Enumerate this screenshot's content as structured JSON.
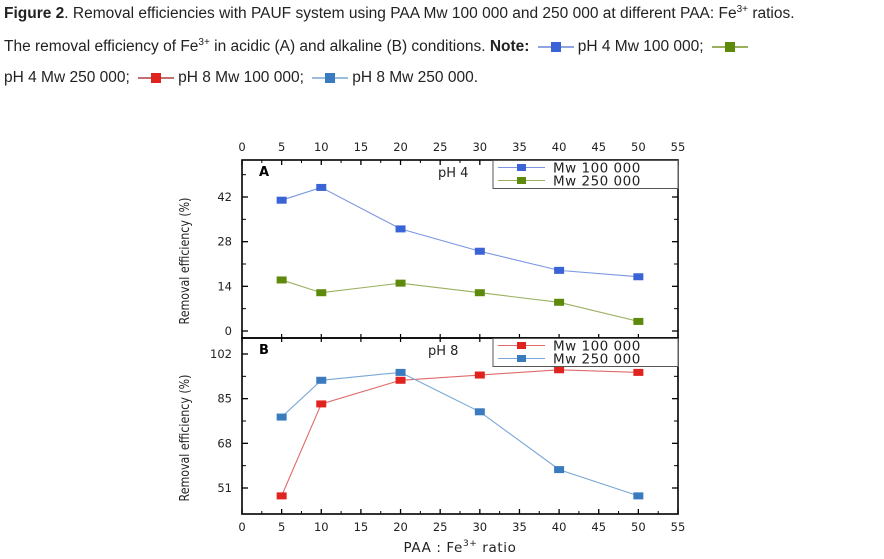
{
  "caption": {
    "figure_label": "Figure 2",
    "line1_rest": ". Removal efficiencies with PAUF system using PAA Mw 100 000 and 250 000 at different PAA: Fe",
    "line1_sup": "3+",
    "line1_end": " ratios.",
    "line2_pre": "The removal efficiency of Fe",
    "line2_sup": "3+",
    "line2_mid": " in acidic (A) and alkaline (B) conditions. ",
    "note_label": "Note:",
    "legend_items": [
      {
        "text": "pH 4 Mw 100 000;",
        "color": "#3a63d6",
        "line_color": "#8fa4e0"
      },
      {
        "text": "pH 4 Mw 250 000;",
        "color": "#5e8a0c",
        "line_color": "#9ab060"
      },
      {
        "text": "pH 8 Mw 100 000;",
        "color": "#e0231f",
        "line_color": "#c07070"
      },
      {
        "text": "pH 8 Mw 250 000.",
        "color": "#3a7abf",
        "line_color": "#9bbcdc"
      }
    ]
  },
  "chart_data": [
    {
      "type": "line",
      "panel": "A",
      "annotation": "pH 4",
      "xlabel": "",
      "ylabel": "Removal efficiency (%)",
      "x_ticks": [
        0,
        5,
        10,
        15,
        20,
        25,
        30,
        35,
        40,
        45,
        50,
        55
      ],
      "x_tick_position": "top",
      "xlim": [
        0,
        55
      ],
      "y_ticks": [
        0,
        14,
        28,
        42
      ],
      "ylim": [
        -2,
        53
      ],
      "grid": false,
      "legend_position": "top-right",
      "x": [
        5,
        10,
        20,
        30,
        40,
        50
      ],
      "series": [
        {
          "name": "Mw 100 000",
          "color": "#3a63d6",
          "line_color": "#7b95e3",
          "values": [
            41,
            45,
            32,
            25,
            19,
            17
          ]
        },
        {
          "name": "Mw 250 000",
          "color": "#5e8a0c",
          "line_color": "#9ab060",
          "values": [
            16,
            12,
            15,
            12,
            9,
            3
          ]
        }
      ]
    },
    {
      "type": "line",
      "panel": "B",
      "annotation": "pH 8",
      "xlabel": "PAA : Fe3+ ratio",
      "ylabel": "Removal efficiency (%)",
      "x_ticks": [
        0,
        5,
        10,
        15,
        20,
        25,
        30,
        35,
        40,
        45,
        50,
        55
      ],
      "x_tick_position": "bottom",
      "xlim": [
        0,
        55
      ],
      "y_ticks": [
        51,
        68,
        85,
        102
      ],
      "ylim": [
        41,
        106
      ],
      "grid": false,
      "legend_position": "top-right",
      "x": [
        5,
        10,
        20,
        30,
        40,
        50
      ],
      "series": [
        {
          "name": "Mw 100 000",
          "color": "#e0231f",
          "line_color": "#e06a6a",
          "values": [
            48,
            83,
            92,
            94,
            96,
            95
          ]
        },
        {
          "name": "Mw 250 000",
          "color": "#3a7abf",
          "line_color": "#7aa7d6",
          "values": [
            78,
            92,
            95,
            80,
            58,
            48
          ]
        }
      ]
    }
  ],
  "axis_text": {
    "xlabel_main": "PAA : Fe",
    "xlabel_sup": "3+",
    "xlabel_end": " ratio"
  }
}
